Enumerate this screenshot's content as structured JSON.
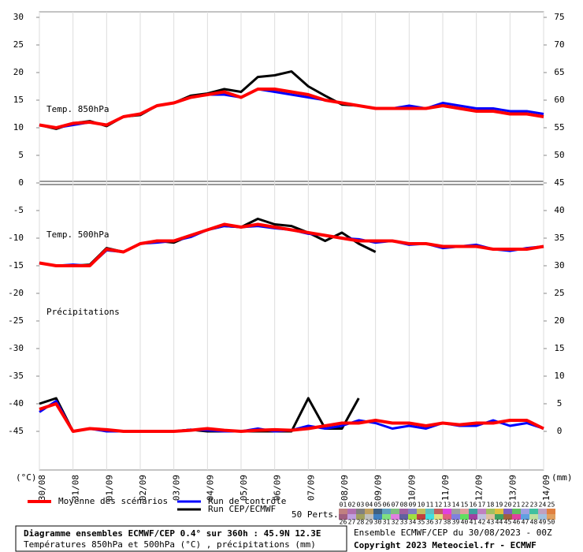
{
  "chart_data": {
    "type": "line",
    "title": "Diagramme ensembles ECMWF/CEP 0.4° sur 360h : 45.9N 12.3E",
    "subtitle": "Températures 850hPa et 500hPa (°C) , précipitations (mm)",
    "run_info": "Ensemble ECMWF/CEP du 30/08/2023 - 00Z",
    "copyright": "Copyright 2023 Meteociel.fr - ECMWF",
    "y_unit": "(°C)",
    "y2_unit": "(mm)",
    "xlim": [
      0,
      15
    ],
    "xticks": [
      {
        "value": 0,
        "label": "30/08"
      },
      {
        "value": 1,
        "label": "31/08"
      },
      {
        "value": 2,
        "label": "01/09"
      },
      {
        "value": 3,
        "label": "02/09"
      },
      {
        "value": 4,
        "label": "03/09"
      },
      {
        "value": 5,
        "label": "04/09"
      },
      {
        "value": 6,
        "label": "05/09"
      },
      {
        "value": 7,
        "label": "06/09"
      },
      {
        "value": 8,
        "label": "07/09"
      },
      {
        "value": 9,
        "label": "08/09"
      },
      {
        "value": 10,
        "label": "09/09"
      },
      {
        "value": 11,
        "label": "10/09"
      },
      {
        "value": 12,
        "label": "11/09"
      },
      {
        "value": 13,
        "label": "12/09"
      },
      {
        "value": 14,
        "label": "13/09"
      },
      {
        "value": 15,
        "label": "14/09"
      }
    ],
    "ylim": [
      -52,
      31
    ],
    "yticks": [
      -45,
      -40,
      -35,
      -30,
      -25,
      -20,
      -15,
      -10,
      -5,
      0,
      5,
      10,
      15,
      20,
      25,
      30
    ],
    "y2lim": [
      -7,
      76
    ],
    "y2ticks": [
      0,
      5,
      10,
      15,
      20,
      25,
      30,
      35,
      40,
      45,
      50,
      55,
      60,
      65,
      70,
      75
    ],
    "x": [
      0,
      0.5,
      1,
      1.5,
      2,
      2.5,
      3,
      3.5,
      4,
      4.5,
      5,
      5.5,
      6,
      6.5,
      7,
      7.5,
      8,
      8.5,
      9,
      9.5,
      10,
      10.5,
      11,
      11.5,
      12,
      12.5,
      13,
      13.5,
      14,
      14.5,
      15
    ],
    "legend": [
      {
        "name": "Moyenne des scénarios",
        "color": "#ff0000",
        "width": 4
      },
      {
        "name": "Run de contrôle",
        "color": "#0000ff",
        "width": 3
      },
      {
        "name": "Run CEP/ECMWF",
        "color": "#000000",
        "width": 3
      }
    ],
    "panels": [
      {
        "label": "Temp. 850hPa",
        "axis": "y",
        "mean": [
          10.5,
          10,
          10.8,
          11,
          10.5,
          12,
          12.5,
          14,
          14.5,
          15.5,
          16,
          16.5,
          15.5,
          17,
          17,
          16.5,
          16,
          15,
          14.5,
          14,
          13.5,
          13.5,
          13.5,
          13.5,
          14,
          13.5,
          13,
          13,
          12.5,
          12.5,
          12
        ],
        "control": [
          10.5,
          10,
          10.5,
          11,
          10.5,
          12,
          12.5,
          14,
          14.5,
          15.5,
          16,
          16,
          15.5,
          17,
          16.5,
          16,
          15.5,
          15,
          14.5,
          14,
          13.5,
          13.5,
          14,
          13.5,
          14.5,
          14,
          13.5,
          13.5,
          13,
          13,
          12.5
        ],
        "cep": [
          10.5,
          9.8,
          10.8,
          11.2,
          10.3,
          12,
          12.3,
          14,
          14.5,
          15.8,
          16.2,
          17,
          16.5,
          19.2,
          19.5,
          20.2,
          17.5,
          15.8,
          14.2,
          14,
          null,
          null,
          null,
          null,
          null,
          null,
          null,
          null,
          null,
          null,
          null
        ]
      },
      {
        "label": "Temp. 500hPa",
        "axis": "y",
        "mean": [
          -14.5,
          -15,
          -15,
          -15,
          -12,
          -12.5,
          -11,
          -10.5,
          -10.5,
          -9.5,
          -8.5,
          -7.5,
          -8,
          -7.5,
          -8,
          -8.5,
          -9,
          -9.5,
          -10,
          -10.5,
          -10.5,
          -10.5,
          -11,
          -11,
          -11.5,
          -11.5,
          -11.5,
          -12,
          -12,
          -12,
          -11.5
        ],
        "control": [
          -14.5,
          -15,
          -14.8,
          -15,
          -12.2,
          -12.5,
          -11,
          -10.8,
          -10.5,
          -9.8,
          -8.5,
          -7.8,
          -8,
          -7.8,
          -8.2,
          -8.5,
          -9.2,
          -9.5,
          -10,
          -10.2,
          -10.8,
          -10.5,
          -11.2,
          -11,
          -11.8,
          -11.5,
          -11.2,
          -12,
          -12.3,
          -11.8,
          -11.5
        ],
        "cep": [
          -14.5,
          -15,
          -15,
          -14.8,
          -11.8,
          -12.5,
          -11,
          -10.5,
          -10.8,
          -9.5,
          -8.5,
          -7.8,
          -8,
          -6.5,
          -7.5,
          -7.8,
          -9,
          -10.5,
          -9,
          -11,
          -12.5,
          null,
          null,
          null,
          null,
          null,
          null,
          null,
          null,
          null,
          null
        ]
      },
      {
        "label": "Précipitations",
        "axis": "y2",
        "mean": [
          4,
          5,
          0,
          0.5,
          0.3,
          0,
          0,
          0,
          0,
          0.2,
          0.5,
          0.2,
          0,
          0.2,
          0.3,
          0.2,
          0.5,
          1,
          1.5,
          1.5,
          2,
          1.5,
          1.5,
          1,
          1.5,
          1.2,
          1.5,
          1.5,
          2,
          2,
          0.5
        ],
        "control": [
          3.5,
          5.5,
          0,
          0.5,
          0,
          0,
          0,
          0,
          0,
          0.3,
          0.2,
          0,
          0,
          0.5,
          0,
          0.2,
          1,
          0.5,
          1,
          2,
          1.5,
          0.5,
          1,
          0.5,
          1.5,
          1,
          1,
          2,
          1,
          1.5,
          0.5
        ],
        "cep": [
          5,
          6,
          0,
          0.5,
          0.2,
          0,
          0,
          0,
          0,
          0.3,
          0,
          0,
          0,
          0,
          0,
          0,
          6,
          0.5,
          0.5,
          6,
          null,
          null,
          null,
          null,
          null,
          null,
          null,
          null,
          null,
          null,
          null
        ]
      }
    ],
    "perturbations": {
      "label": "50 Perts.",
      "members": [
        {
          "name": "01",
          "color": "#c08080"
        },
        {
          "name": "02",
          "color": "#b070b0"
        },
        {
          "name": "03",
          "color": "#808080"
        },
        {
          "name": "04",
          "color": "#c0a060"
        },
        {
          "name": "05",
          "color": "#406080"
        },
        {
          "name": "06",
          "color": "#60a0c0"
        },
        {
          "name": "07",
          "color": "#80c080"
        },
        {
          "name": "08",
          "color": "#a060a0"
        },
        {
          "name": "09",
          "color": "#8080c0"
        },
        {
          "name": "10",
          "color": "#c0c060"
        },
        {
          "name": "11",
          "color": "#60c0c0"
        },
        {
          "name": "12",
          "color": "#c06060"
        },
        {
          "name": "13",
          "color": "#e040e0"
        },
        {
          "name": "14",
          "color": "#a0a0a0"
        },
        {
          "name": "15",
          "color": "#e0a0a0"
        },
        {
          "name": "16",
          "color": "#40a0a0"
        },
        {
          "name": "17",
          "color": "#c080c0"
        },
        {
          "name": "18",
          "color": "#a0c060"
        },
        {
          "name": "19",
          "color": "#e0c040"
        },
        {
          "name": "20",
          "color": "#8060c0"
        },
        {
          "name": "21",
          "color": "#60c060"
        },
        {
          "name": "22",
          "color": "#a0a0e0"
        },
        {
          "name": "23",
          "color": "#40c0a0"
        },
        {
          "name": "24",
          "color": "#c0a0c0"
        },
        {
          "name": "25",
          "color": "#e08040"
        },
        {
          "name": "26",
          "color": "#a06080"
        },
        {
          "name": "27",
          "color": "#c0a0e0"
        },
        {
          "name": "28",
          "color": "#a0a060"
        },
        {
          "name": "29",
          "color": "#c0c0c0"
        },
        {
          "name": "30",
          "color": "#4080c0"
        },
        {
          "name": "31",
          "color": "#80e080"
        },
        {
          "name": "32",
          "color": "#e080e0"
        },
        {
          "name": "33",
          "color": "#6060a0"
        },
        {
          "name": "34",
          "color": "#a0e040"
        },
        {
          "name": "35",
          "color": "#c04040"
        },
        {
          "name": "36",
          "color": "#40e0e0"
        },
        {
          "name": "37",
          "color": "#e0e080"
        },
        {
          "name": "38",
          "color": "#e06080"
        },
        {
          "name": "39",
          "color": "#8080e0"
        },
        {
          "name": "40",
          "color": "#60e060"
        },
        {
          "name": "41",
          "color": "#a040a0"
        },
        {
          "name": "42",
          "color": "#c0c0e0"
        },
        {
          "name": "43",
          "color": "#e0c0a0"
        },
        {
          "name": "44",
          "color": "#40a060"
        },
        {
          "name": "45",
          "color": "#a06040"
        },
        {
          "name": "46",
          "color": "#e040a0"
        },
        {
          "name": "47",
          "color": "#60a0e0"
        },
        {
          "name": "48",
          "color": "#c0e0a0"
        },
        {
          "name": "49",
          "color": "#a0c0e0"
        },
        {
          "name": "50",
          "color": "#e0a060"
        }
      ]
    }
  }
}
